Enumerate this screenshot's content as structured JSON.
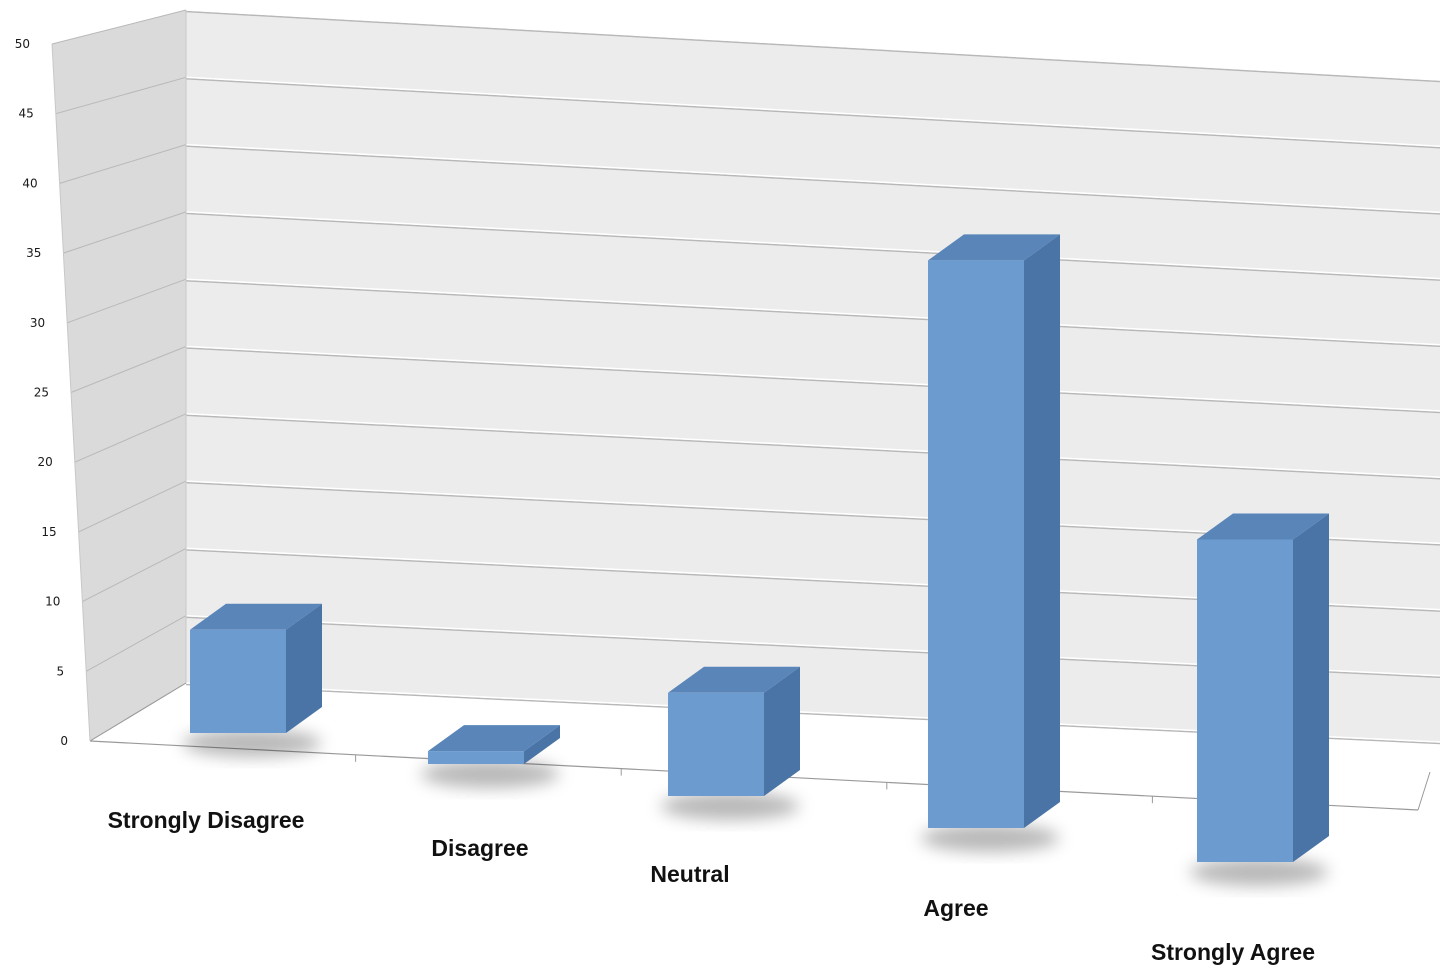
{
  "chart_data": {
    "type": "bar",
    "categories": [
      "Strongly Disagree",
      "Disagree",
      "Neutral",
      "Agree",
      "Strongly Agree"
    ],
    "values": [
      8,
      1,
      8,
      44,
      25
    ],
    "ylim": [
      0,
      50
    ],
    "ytick_values": [
      0,
      5,
      10,
      15,
      20,
      25,
      30,
      35,
      40,
      45,
      50
    ],
    "ytick_labels": [
      "0",
      "5",
      "10",
      "15",
      "20",
      "25",
      "30",
      "35",
      "40",
      "45",
      "50"
    ],
    "grid": true,
    "legend": "none",
    "style": "3d-perspective",
    "colors": {
      "bar_front": "#6c9bd0",
      "bar_side": "#4a74a6",
      "bar_top": "#5a85b9",
      "back_wall": "#ececec",
      "side_wall": "#dadada",
      "grid": "#ffffff",
      "grid_shadow": "#b8b8b8",
      "axis": "#9a9a9a"
    }
  }
}
